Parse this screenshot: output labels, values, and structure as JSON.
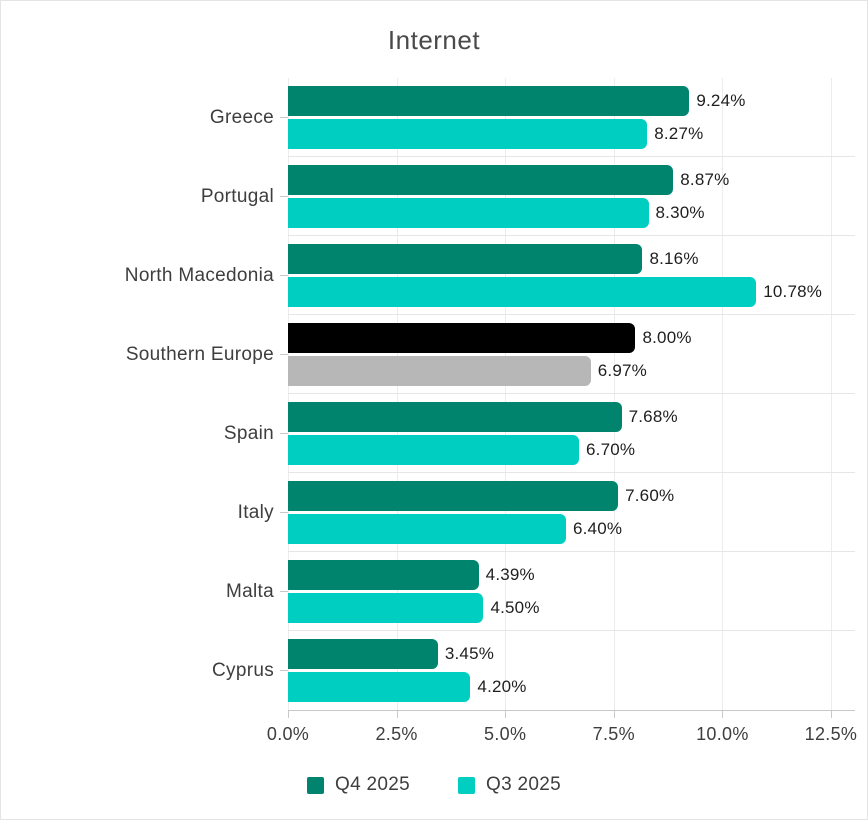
{
  "chart_data": {
    "type": "bar",
    "orientation": "horizontal",
    "title": "Internet",
    "categories": [
      "Greece",
      "Portugal",
      "North Macedonia",
      "Southern Europe",
      "Spain",
      "Italy",
      "Malta",
      "Cyprus"
    ],
    "series": [
      {
        "name": "Q4 2025",
        "color": "#00846e",
        "values": [
          9.24,
          8.87,
          8.16,
          8.0,
          7.68,
          7.6,
          4.39,
          3.45
        ],
        "labels": [
          "9.24%",
          "8.87%",
          "8.16%",
          "8.00%",
          "7.68%",
          "7.60%",
          "4.39%",
          "3.45%"
        ]
      },
      {
        "name": "Q3 2025",
        "color": "#00cec0",
        "values": [
          8.27,
          8.3,
          10.78,
          6.97,
          6.7,
          6.4,
          4.5,
          4.2
        ],
        "labels": [
          "8.27%",
          "8.30%",
          "10.78%",
          "6.97%",
          "6.70%",
          "6.40%",
          "4.50%",
          "4.20%"
        ]
      }
    ],
    "category_color_overrides": {
      "Southern Europe": [
        "#000000",
        "#b7b7b7"
      ]
    },
    "x_axis": {
      "min": 0,
      "max": 12.5,
      "ticks": [
        {
          "value": 0,
          "label": "0.0%"
        },
        {
          "value": 2.5,
          "label": "2.5%"
        },
        {
          "value": 5,
          "label": "5.0%"
        },
        {
          "value": 7.5,
          "label": "7.5%"
        },
        {
          "value": 10,
          "label": "10.0%"
        },
        {
          "value": 12.5,
          "label": "12.5%"
        }
      ]
    },
    "legend": {
      "position": "bottom"
    },
    "grid": true
  }
}
